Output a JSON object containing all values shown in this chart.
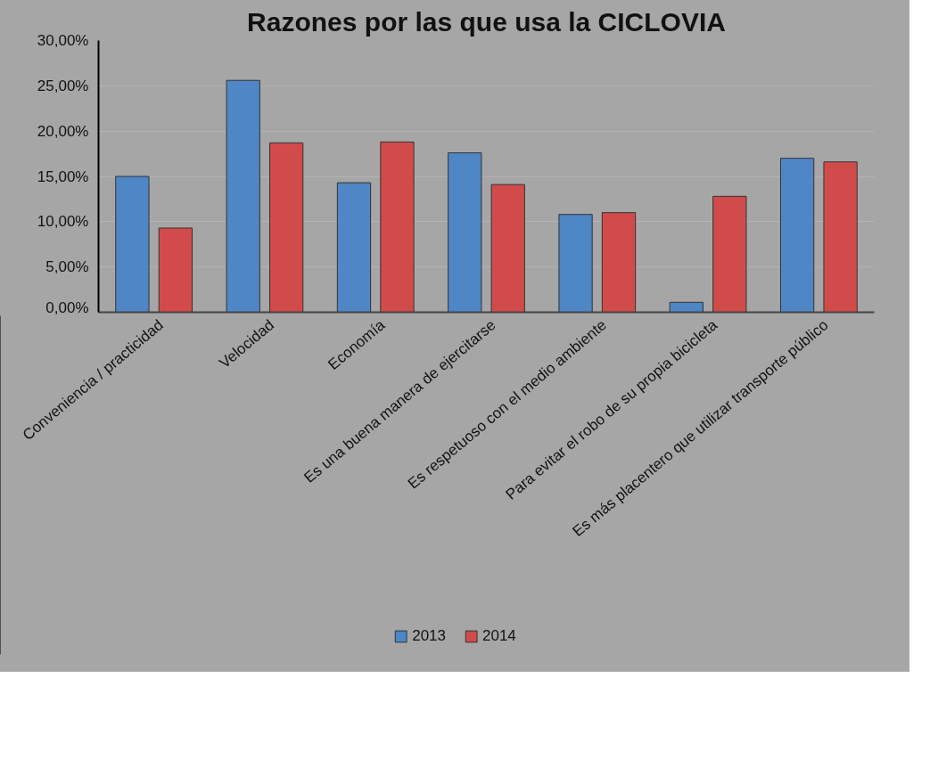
{
  "chart_data": {
    "type": "bar",
    "title": "Razones por las que usa la CICLOVIA",
    "categories": [
      "Conveniencia / practicidad",
      "Velocidad",
      "Economía",
      "Es una buena manera de ejercitarse",
      "Es respetuoso con el medio ambiente",
      "Para evitar el robo de su propia bicicleta",
      "Es más placentero que utilizar transporte público"
    ],
    "series": [
      {
        "name": "2013",
        "color": "#4f86c6",
        "values": [
          15.0,
          25.6,
          14.3,
          17.6,
          10.8,
          1.1,
          17.0
        ]
      },
      {
        "name": "2014",
        "color": "#d24b4b",
        "values": [
          9.3,
          18.7,
          18.8,
          14.1,
          11.0,
          12.8,
          16.6
        ]
      }
    ],
    "ylim": [
      0,
      30
    ],
    "yticks": [
      {
        "value": 0,
        "label": "0,00%"
      },
      {
        "value": 5,
        "label": "5,00%"
      },
      {
        "value": 10,
        "label": "10,00%"
      },
      {
        "value": 15,
        "label": "15,00%"
      },
      {
        "value": 20,
        "label": "20,00%"
      },
      {
        "value": 25,
        "label": "25,00%"
      },
      {
        "value": 30,
        "label": "30,00%"
      }
    ],
    "grid": "y",
    "legend": "bottom"
  }
}
